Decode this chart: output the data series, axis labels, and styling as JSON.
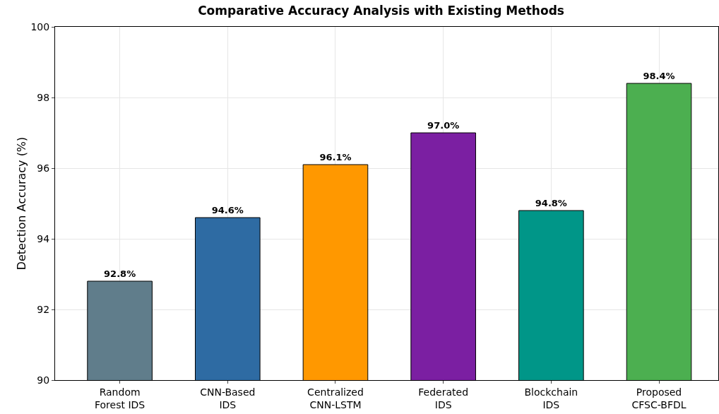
{
  "chart_data": {
    "type": "bar",
    "title": "Comparative Accuracy Analysis with Existing Methods",
    "ylabel": "Detection Accuracy (%)",
    "categories": [
      "Random\nForest IDS",
      "CNN-Based\nIDS",
      "Centralized\nCNN-LSTM",
      "Federated\nIDS",
      "Blockchain\nIDS",
      "Proposed\nCFSC-BFDL"
    ],
    "values": [
      92.8,
      94.6,
      96.1,
      97.0,
      94.8,
      98.4
    ],
    "colors": [
      "#607d8b",
      "#2e6ba3",
      "#ff9800",
      "#7b1fa2",
      "#009688",
      "#4caf50"
    ],
    "value_labels": [
      "92.8%",
      "94.6%",
      "96.1%",
      "97.0%",
      "94.8%",
      "98.4%"
    ],
    "ylim": [
      90,
      100
    ],
    "yticks": [
      90,
      92,
      94,
      96,
      98,
      100
    ],
    "grid": true
  }
}
